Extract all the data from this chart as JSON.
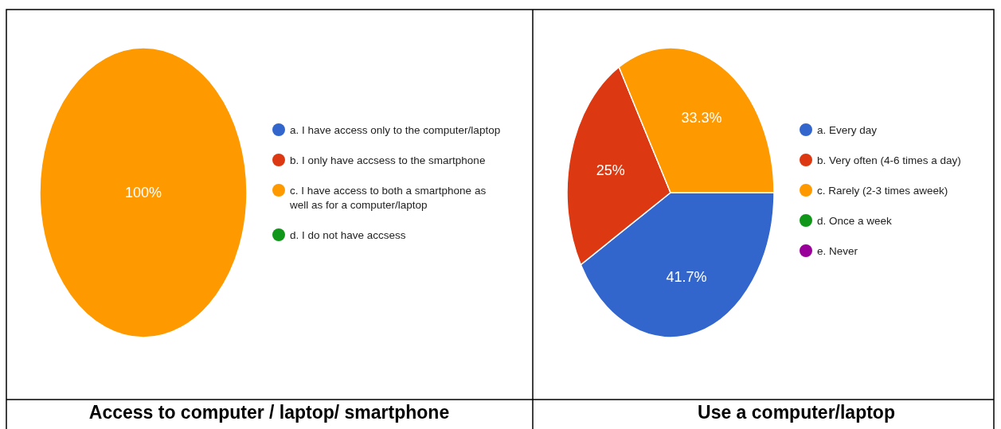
{
  "chart_data": [
    {
      "type": "pie",
      "title": "Access to computer / laptop/ smartphone",
      "categories": [
        "a. I have access only to the computer/laptop",
        "b. I only have accsess to the smartphone",
        "c. I have access to both a smartphone as well as for a computer/laptop",
        "d. I do not have accsess"
      ],
      "values": [
        0,
        0,
        100,
        0
      ],
      "colors": [
        "#3366cc",
        "#dc3912",
        "#ff9900",
        "#109618"
      ],
      "value_labels": [
        null,
        null,
        "100%",
        null
      ],
      "legend": "right"
    },
    {
      "type": "pie",
      "title": "Use a computer/laptop",
      "categories": [
        "a. Every day",
        "b. Very often (4-6 times a day)",
        "c. Rarely (2-3 times  aweek)",
        "d. Once a week",
        "e. Never"
      ],
      "values": [
        41.7,
        25,
        33.3,
        0,
        0
      ],
      "colors": [
        "#3366cc",
        "#dc3912",
        "#ff9900",
        "#109618",
        "#990099"
      ],
      "value_labels": [
        "41.7%",
        "25%",
        "33.3%",
        null,
        null
      ],
      "legend": "right"
    }
  ]
}
